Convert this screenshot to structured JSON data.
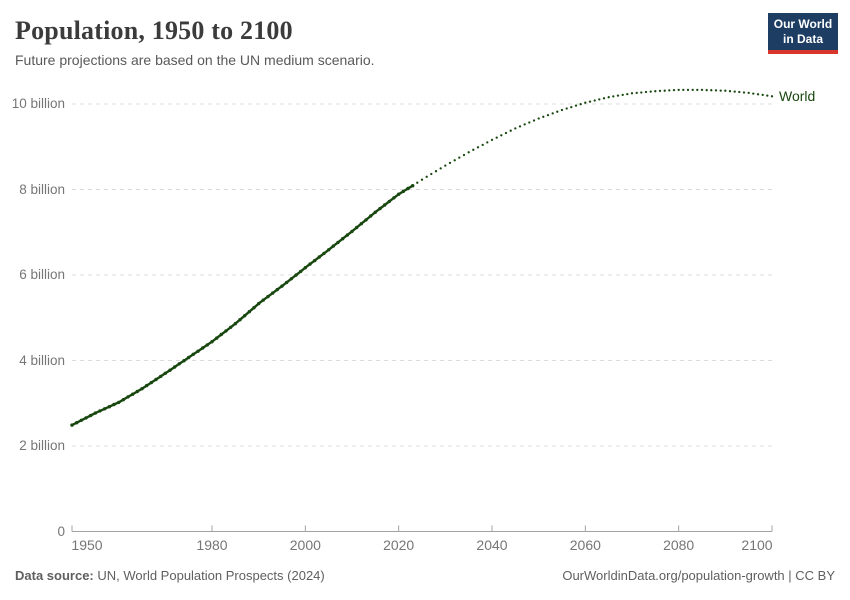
{
  "header": {
    "title": "Population, 1950 to 2100",
    "subtitle": "Future projections are based on the UN medium scenario.",
    "logo": {
      "line1": "Our World",
      "line2": "in Data",
      "bg_color": "#1d3d63",
      "accent_color": "#d8352c"
    }
  },
  "chart_data": {
    "type": "line",
    "title": "Population, 1950 to 2100",
    "xlabel": "",
    "ylabel": "",
    "unit": "billion people",
    "xlim": [
      1950,
      2100
    ],
    "ylim": [
      0,
      10.8
    ],
    "grid": "dashed horizontal",
    "legend_position": "end-of-line",
    "projection_start_year": 2023,
    "x_ticks": [
      1950,
      1980,
      2000,
      2020,
      2040,
      2060,
      2080,
      2100
    ],
    "y_ticks": [
      {
        "value": 0,
        "label": "0"
      },
      {
        "value": 2,
        "label": "2 billion"
      },
      {
        "value": 4,
        "label": "4 billion"
      },
      {
        "value": 6,
        "label": "6 billion"
      },
      {
        "value": 8,
        "label": "8 billion"
      },
      {
        "value": 10,
        "label": "10 billion"
      }
    ],
    "series": [
      {
        "name": "World",
        "color": "#18470f",
        "historical": {
          "style": "dense-dotted",
          "x": [
            1950,
            1955,
            1960,
            1965,
            1970,
            1975,
            1980,
            1985,
            1990,
            1995,
            2000,
            2005,
            2010,
            2015,
            2020,
            2023
          ],
          "y": [
            2.49,
            2.77,
            3.02,
            3.34,
            3.7,
            4.07,
            4.44,
            4.86,
            5.33,
            5.74,
            6.17,
            6.59,
            7.02,
            7.47,
            7.89,
            8.09
          ]
        },
        "projection": {
          "style": "dotted",
          "x": [
            2023,
            2025,
            2030,
            2035,
            2040,
            2045,
            2050,
            2055,
            2060,
            2065,
            2070,
            2075,
            2080,
            2085,
            2090,
            2095,
            2100
          ],
          "y": [
            8.09,
            8.23,
            8.56,
            8.87,
            9.16,
            9.43,
            9.66,
            9.86,
            10.03,
            10.16,
            10.25,
            10.3,
            10.33,
            10.33,
            10.31,
            10.26,
            10.18
          ]
        }
      }
    ],
    "colors": {
      "grid": "#dcdcdc",
      "axis": "#a3a3a3",
      "tick_text": "#767676"
    }
  },
  "footer": {
    "source_label": "Data source:",
    "source_text": " UN, World Population Prospects (2024)",
    "credit": "OurWorldinData.org/population-growth | CC BY"
  }
}
